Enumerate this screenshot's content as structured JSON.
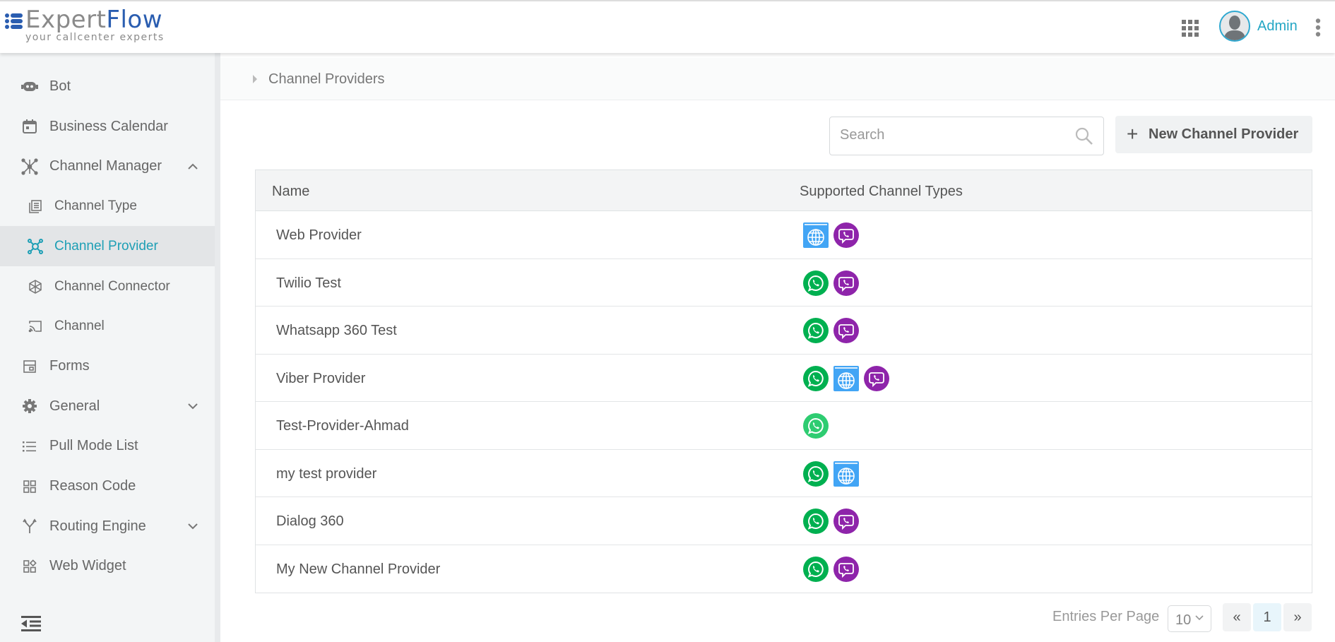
{
  "header": {
    "logo": {
      "word1": "Expert",
      "word2": "Flow",
      "tagline": "your callcenter experts"
    },
    "user_name": "Admin",
    "icons": [
      "apps-grid-icon",
      "avatar",
      "more-vertical-icon"
    ]
  },
  "sidebar": {
    "items": [
      {
        "label": "Bot",
        "icon": "bot-icon"
      },
      {
        "label": "Business Calendar",
        "icon": "calendar-icon"
      },
      {
        "label": "Channel Manager",
        "icon": "hub-icon",
        "expanded": true
      },
      {
        "label": "Channel Type",
        "icon": "list-icon",
        "sub": true
      },
      {
        "label": "Channel Provider",
        "icon": "provider-icon",
        "sub": true,
        "active": true
      },
      {
        "label": "Channel Connector",
        "icon": "connector-icon",
        "sub": true
      },
      {
        "label": "Channel",
        "icon": "cast-icon",
        "sub": true
      },
      {
        "label": "Forms",
        "icon": "forms-icon"
      },
      {
        "label": "General",
        "icon": "gear-icon",
        "expanded": false
      },
      {
        "label": "Pull Mode List",
        "icon": "bullet-list-icon"
      },
      {
        "label": "Reason Code",
        "icon": "grid-icon"
      },
      {
        "label": "Routing Engine",
        "icon": "routing-icon",
        "expanded": false
      },
      {
        "label": "Web Widget",
        "icon": "widget-icon"
      }
    ],
    "collapse_icon": "collapse-menu-icon"
  },
  "breadcrumb": {
    "current": "Channel Providers"
  },
  "toolbar": {
    "search_placeholder": "Search",
    "search_value": "",
    "new_button": "New Channel Provider"
  },
  "table": {
    "columns": [
      "Name",
      "Supported Channel Types"
    ],
    "rows": [
      {
        "name": "Web Provider",
        "types": [
          "web",
          "viber"
        ]
      },
      {
        "name": "Twilio Test",
        "types": [
          "whatsapp",
          "viber"
        ]
      },
      {
        "name": "Whatsapp 360 Test",
        "types": [
          "whatsapp",
          "viber"
        ]
      },
      {
        "name": "Viber Provider",
        "types": [
          "whatsapp",
          "web",
          "viber"
        ]
      },
      {
        "name": "Test-Provider-Ahmad",
        "types": [
          "whatsapp-light"
        ]
      },
      {
        "name": "my test provider",
        "types": [
          "whatsapp",
          "web"
        ]
      },
      {
        "name": "Dialog 360",
        "types": [
          "whatsapp",
          "viber"
        ]
      },
      {
        "name": "My New Channel Provider",
        "types": [
          "whatsapp",
          "viber"
        ]
      }
    ]
  },
  "pagination": {
    "entries_label": "Entries Per Page",
    "per_page": "10",
    "prev": "«",
    "current_page": "1",
    "next": "»"
  },
  "colors": {
    "accent": "#1e9fb5",
    "whatsapp": "#00b050",
    "whatsapp_light": "#2ecc71",
    "viber": "#8e24aa",
    "web": "#42a5f5",
    "logo_blue": "#2a5db0"
  }
}
